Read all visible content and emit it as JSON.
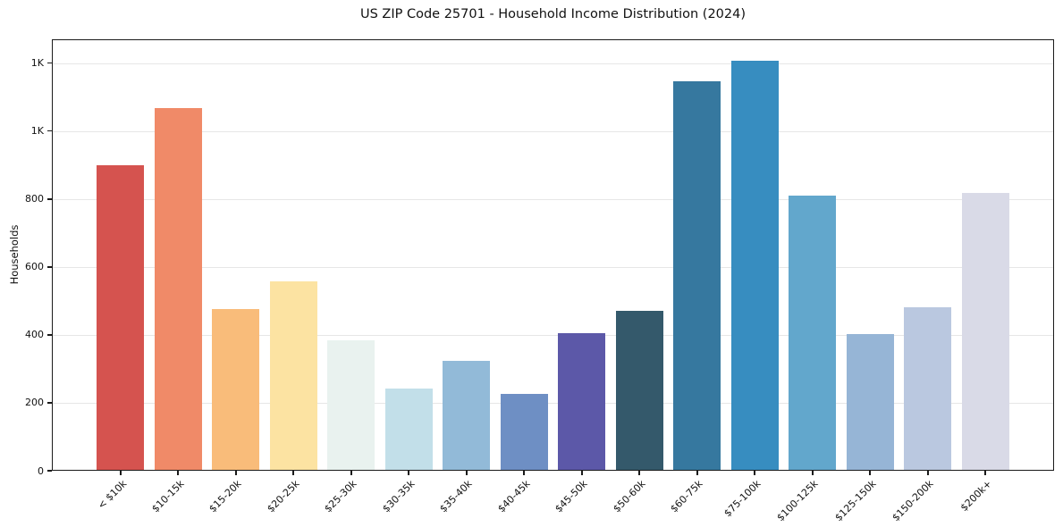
{
  "chart_data": {
    "type": "bar",
    "title": "US ZIP Code 25701 - Household Income Distribution (2024)",
    "xlabel": "",
    "ylabel": "Households",
    "categories": [
      "< $10k",
      "$10-15k",
      "$15-20k",
      "$20-25k",
      "$25-30k",
      "$30-35k",
      "$35-40k",
      "$40-45k",
      "$45-50k",
      "$50-60k",
      "$60-75k",
      "$75-100k",
      "$100-125k",
      "$125-150k",
      "$150-200k",
      "$200k+"
    ],
    "values": [
      900,
      1067,
      476,
      557,
      385,
      242,
      324,
      227,
      406,
      470,
      1146,
      1206,
      810,
      403,
      482,
      818
    ],
    "bar_colors": [
      "#d5534f",
      "#f08a68",
      "#f9bc7a",
      "#fce3a2",
      "#e9f2ef",
      "#c2dfe9",
      "#92bad8",
      "#6e8fc4",
      "#5c58a8",
      "#34596b",
      "#36789f",
      "#378dc0",
      "#62a7cc",
      "#96b5d6",
      "#bac8e0",
      "#d9dae7"
    ],
    "ylim": [
      0,
      1270
    ],
    "yticks": [
      {
        "value": 0,
        "label": "0"
      },
      {
        "value": 200,
        "label": "200"
      },
      {
        "value": 400,
        "label": "400"
      },
      {
        "value": 600,
        "label": "600"
      },
      {
        "value": 800,
        "label": "800"
      },
      {
        "value": 1000,
        "label": "1K"
      },
      {
        "value": 1200,
        "label": "1K"
      }
    ],
    "grid": "horizontal",
    "legend": "none",
    "x_tick_rotation_deg": 45
  },
  "colors": {
    "spine": "#1a1a1a",
    "gridline": "#e6e6e6",
    "background": "#ffffff",
    "text": "#111111"
  }
}
